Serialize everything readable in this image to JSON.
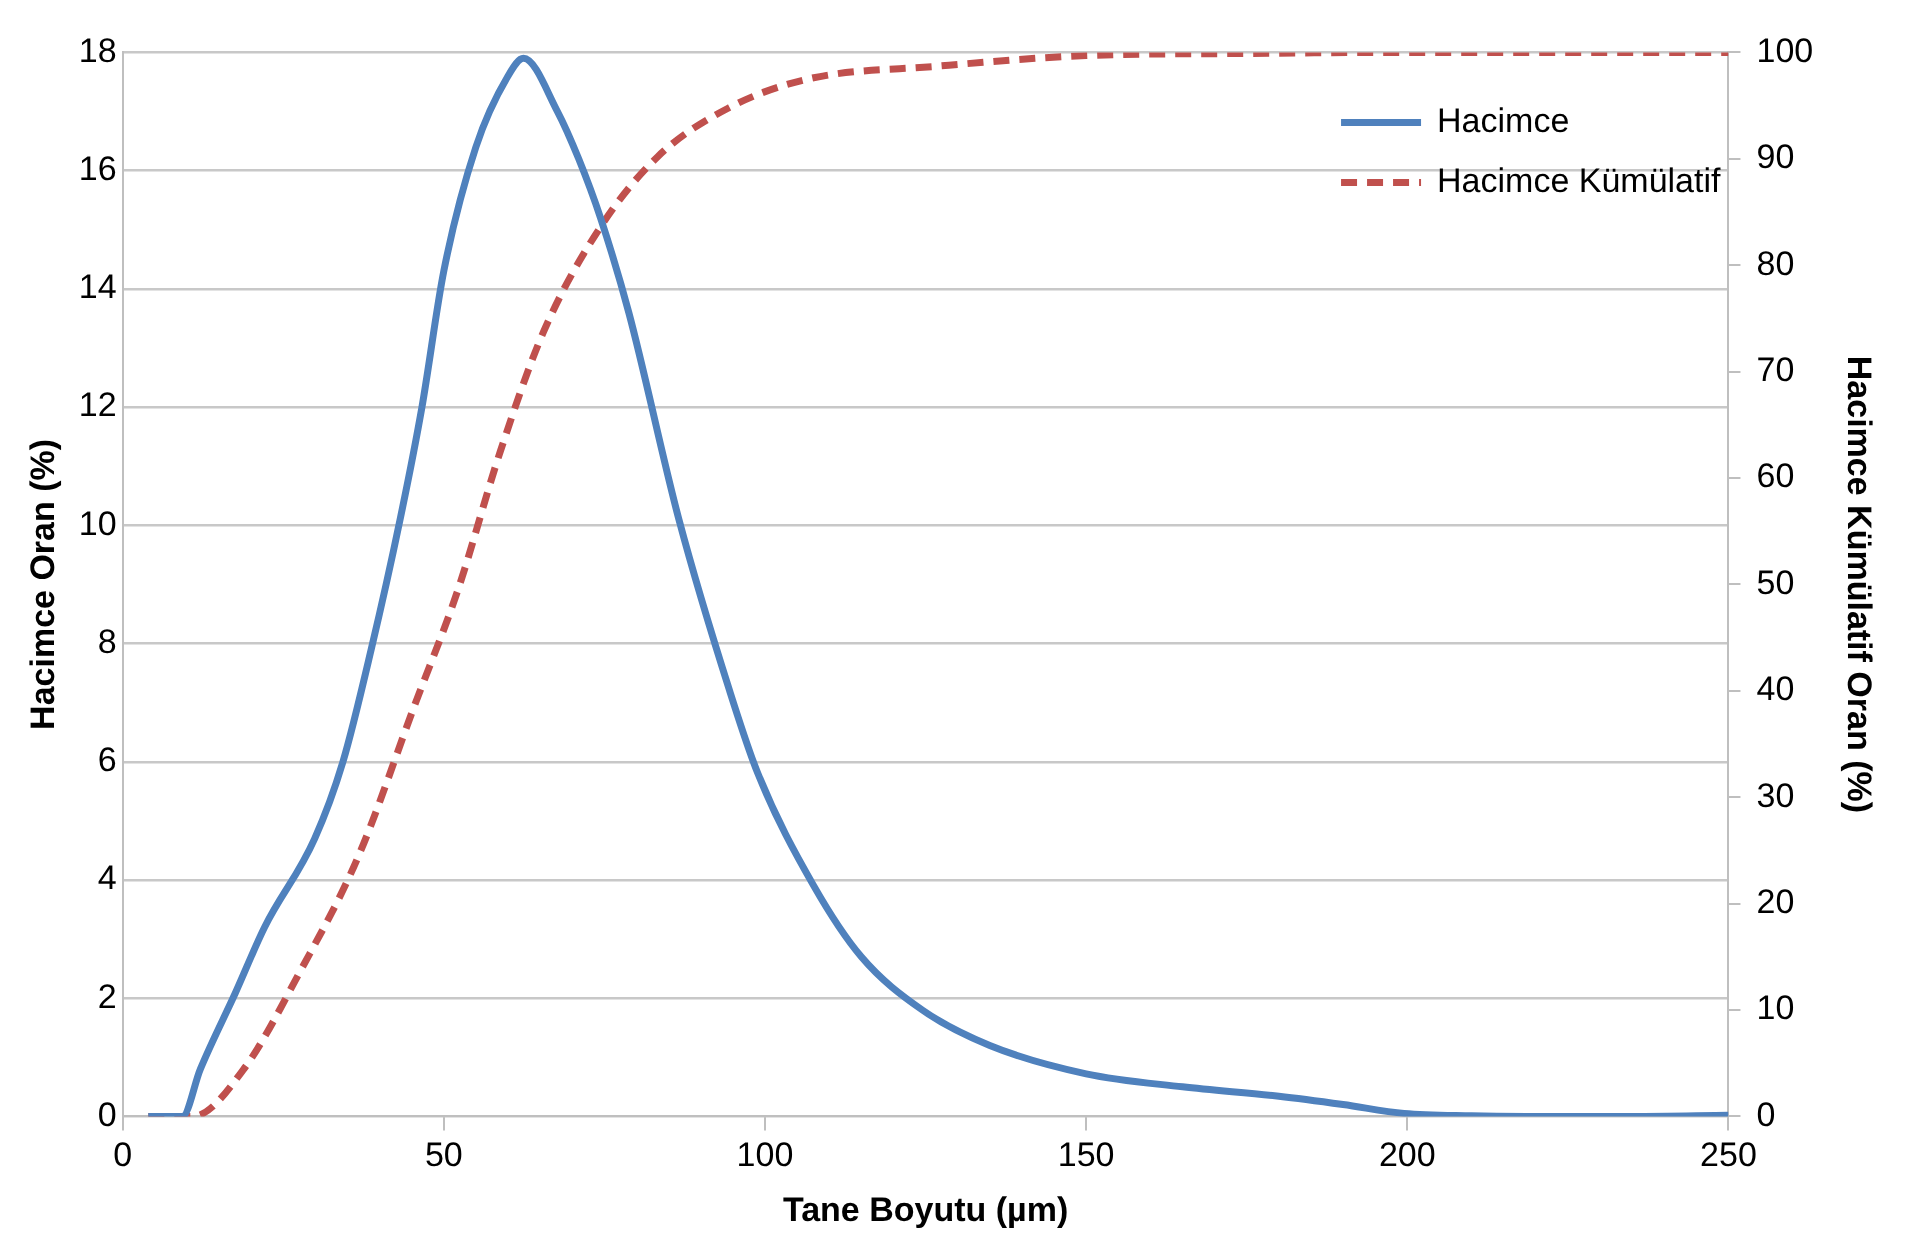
{
  "chart_data": {
    "type": "line",
    "xlabel": "Tane Boyutu (µm)",
    "ylabel": "Hacimce Oran (%)",
    "y2label": "Hacimce Kümülatif Oran (%)",
    "xlim": [
      0,
      250
    ],
    "xticks": [
      0,
      50,
      100,
      150,
      200,
      250
    ],
    "ylim": [
      0,
      18
    ],
    "yticks": [
      0,
      2,
      4,
      6,
      8,
      10,
      12,
      14,
      16,
      18
    ],
    "y2lim": [
      0,
      100
    ],
    "y2ticks": [
      0,
      10,
      20,
      30,
      40,
      50,
      60,
      70,
      80,
      90,
      100
    ],
    "grid": "y",
    "legend": "top right",
    "marker": "none",
    "series": [
      {
        "name": "Hacimce",
        "color": "#4f81bd",
        "line_style": "solid",
        "x": [
          4,
          9.3,
          12.1,
          17.6,
          22.1,
          29.9,
          34.3,
          38.7,
          43.2,
          46.6,
          50,
          55,
          60,
          62.4,
          67.7,
          71,
          74.4,
          78.8,
          86.6,
          94.5,
          98.9,
          107.6,
          115,
          124.5,
          135,
          150,
          165,
          180,
          190,
          199.5,
          210,
          220,
          235,
          250
        ],
        "values": [
          0,
          0,
          0.8,
          2.1,
          3.2,
          4.7,
          6.0,
          7.9,
          10.1,
          12.0,
          14.3,
          16.4,
          17.6,
          17.9,
          17.0,
          16.2,
          15.2,
          13.6,
          10.1,
          7.2,
          5.8,
          3.9,
          2.7,
          1.8,
          1.2,
          0.72,
          0.5,
          0.34,
          0.2,
          0.05,
          0.01,
          0,
          0,
          0.02
        ]
      },
      {
        "name": "Hacimce Kümülatif",
        "color": "#c0504d",
        "line_style": "dashed",
        "axis": "y2",
        "x": [
          4,
          10.9,
          18.8,
          27.7,
          36.6,
          45.5,
          52.1,
          58.8,
          65.5,
          74.4,
          83.3,
          94.4,
          106.7,
          126.8,
          150,
          175,
          200,
          250
        ],
        "values": [
          0,
          0,
          4.4,
          13.7,
          24.3,
          38.7,
          49.3,
          62.5,
          73.7,
          83.6,
          90.2,
          94.8,
          97.5,
          98.7,
          99.7,
          99.9,
          100,
          100
        ]
      }
    ]
  }
}
